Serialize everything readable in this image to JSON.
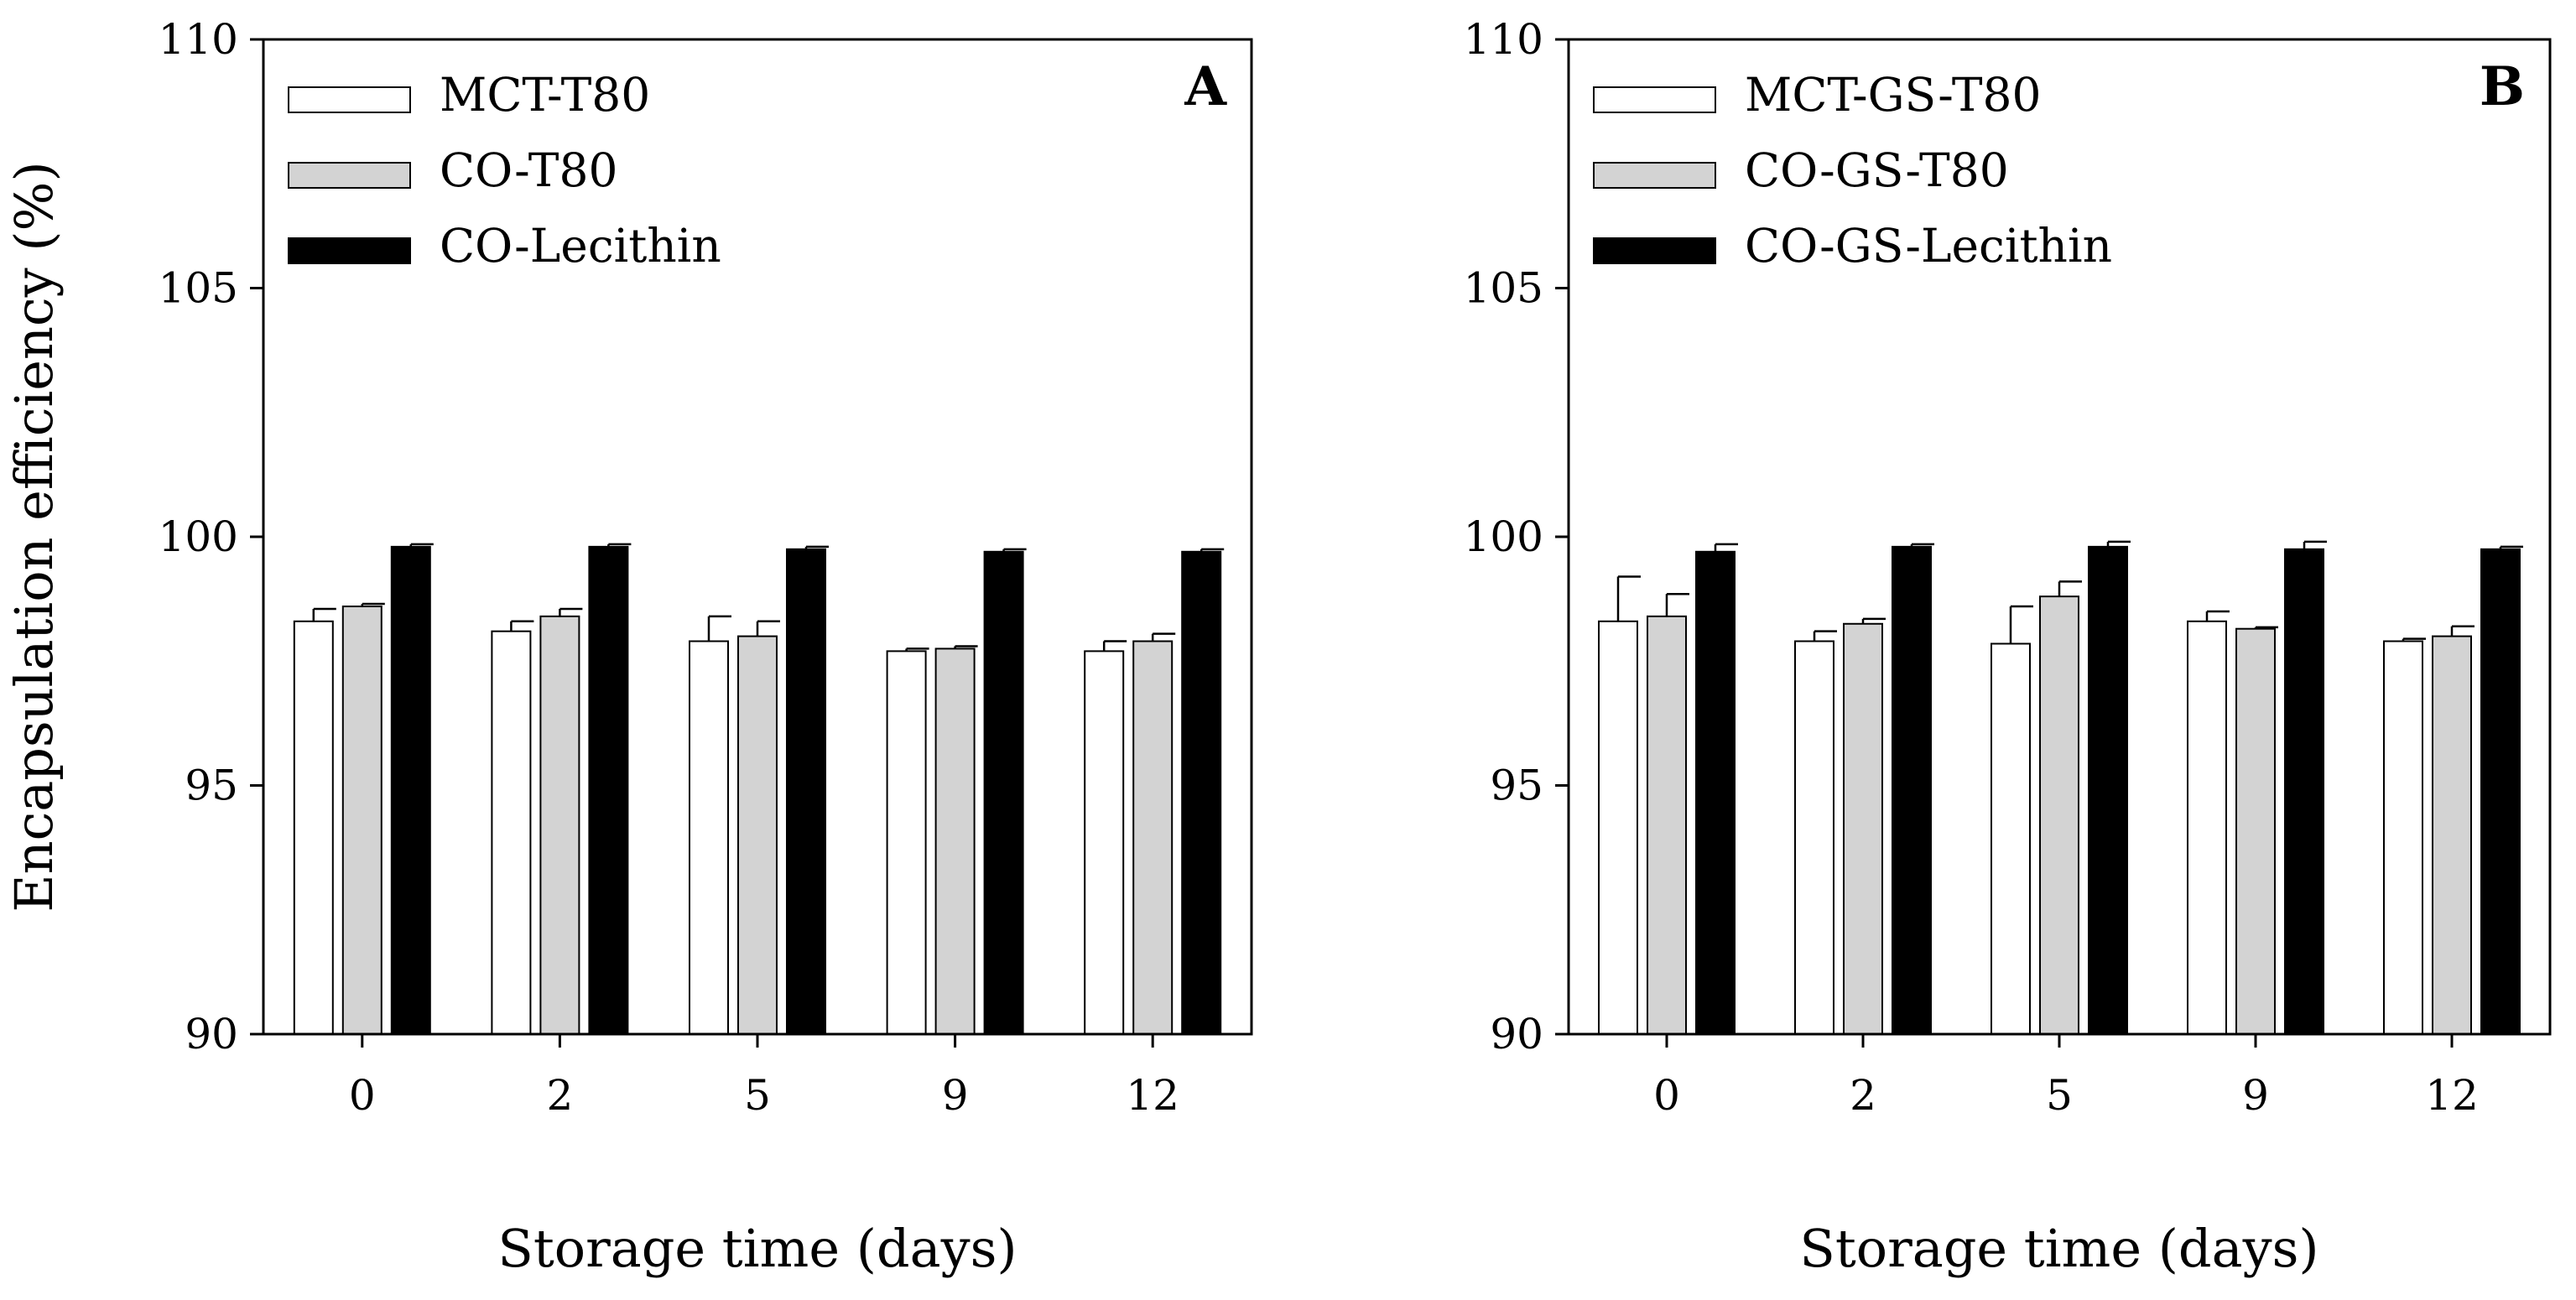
{
  "chart_data": [
    {
      "type": "bar",
      "panel_label": "A",
      "title": "",
      "xlabel": "Storage time (days)",
      "ylabel": "Encapsulation efficiency (%)",
      "ylim": [
        90,
        110
      ],
      "yticks": [
        "90",
        "95",
        "100",
        "105",
        "110"
      ],
      "categories": [
        "0",
        "2",
        "5",
        "9",
        "12"
      ],
      "legend_position": "top-left",
      "series": [
        {
          "name": "MCT-T80",
          "color": "#ffffff",
          "values": [
            98.3,
            98.1,
            97.9,
            97.7,
            97.7
          ],
          "errors": [
            0.25,
            0.2,
            0.5,
            0.05,
            0.2
          ]
        },
        {
          "name": "CO-T80",
          "color": "#d3d3d3",
          "values": [
            98.6,
            98.4,
            98.0,
            97.75,
            97.9
          ],
          "errors": [
            0.05,
            0.15,
            0.3,
            0.05,
            0.15
          ]
        },
        {
          "name": "CO-Lecithin",
          "color": "#000000",
          "values": [
            99.8,
            99.8,
            99.75,
            99.7,
            99.7
          ],
          "errors": [
            0.05,
            0.05,
            0.05,
            0.05,
            0.05
          ]
        }
      ]
    },
    {
      "type": "bar",
      "panel_label": "B",
      "title": "",
      "xlabel": "Storage time (days)",
      "ylabel": "",
      "ylim": [
        90,
        110
      ],
      "yticks": [
        "90",
        "95",
        "100",
        "105",
        "110"
      ],
      "categories": [
        "0",
        "2",
        "5",
        "9",
        "12"
      ],
      "legend_position": "top-left",
      "series": [
        {
          "name": "MCT-GS-T80",
          "color": "#ffffff",
          "values": [
            98.3,
            97.9,
            97.85,
            98.3,
            97.9
          ],
          "errors": [
            0.9,
            0.2,
            0.75,
            0.2,
            0.05
          ]
        },
        {
          "name": "CO-GS-T80",
          "color": "#d3d3d3",
          "values": [
            98.4,
            98.25,
            98.8,
            98.15,
            98.0
          ],
          "errors": [
            0.45,
            0.1,
            0.3,
            0.03,
            0.2
          ]
        },
        {
          "name": "CO-GS-Lecithin",
          "color": "#000000",
          "values": [
            99.7,
            99.8,
            99.8,
            99.75,
            99.75
          ],
          "errors": [
            0.15,
            0.05,
            0.1,
            0.15,
            0.05
          ]
        }
      ]
    }
  ]
}
